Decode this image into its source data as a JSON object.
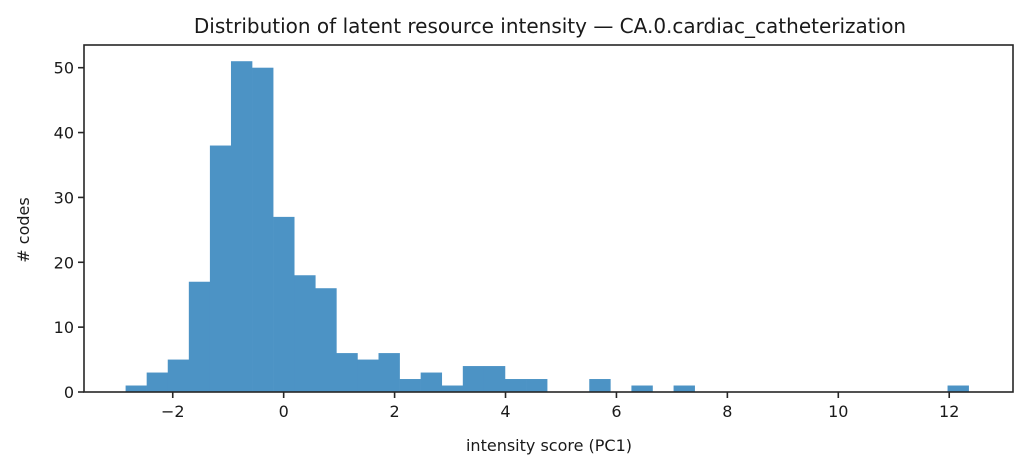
{
  "chart_data": {
    "type": "bar",
    "title": "Distribution of latent resource intensity — CA.0.cardiac_catheterization",
    "xlabel": "intensity score (PC1)",
    "ylabel": "# codes",
    "bin_start": -2.85,
    "bin_width": 0.38,
    "bin_count": 40,
    "values": [
      1,
      3,
      5,
      17,
      38,
      51,
      50,
      27,
      18,
      16,
      6,
      5,
      6,
      2,
      3,
      1,
      4,
      4,
      2,
      2,
      0,
      0,
      2,
      0,
      1,
      0,
      1,
      0,
      0,
      0,
      0,
      0,
      0,
      0,
      0,
      0,
      0,
      0,
      0,
      1
    ],
    "xlim": [
      -3.6,
      13.15
    ],
    "ylim": [
      0,
      53.5
    ],
    "xticks": [
      -2,
      0,
      2,
      4,
      6,
      8,
      10,
      12
    ],
    "xtick_labels": [
      "−2",
      "0",
      "2",
      "4",
      "6",
      "8",
      "10",
      "12"
    ],
    "yticks": [
      0,
      10,
      20,
      30,
      40,
      50
    ],
    "ytick_labels": [
      "0",
      "10",
      "20",
      "30",
      "40",
      "50"
    ],
    "grid": false,
    "legend": null,
    "bar_color": "#4c93c5"
  }
}
